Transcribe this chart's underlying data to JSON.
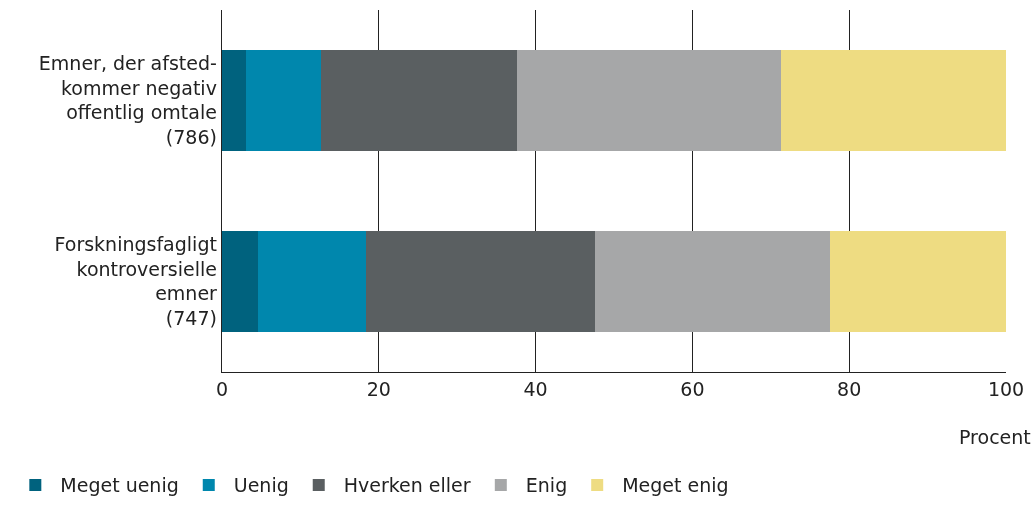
{
  "chart_data": {
    "type": "bar",
    "orientation": "horizontal",
    "stacked": true,
    "categories": [
      "Emner, der afsted-\nkommer negativ\noffentlig omtale\n(786)",
      "Forskningsfagligt\nkontroversielle\nemner\n(747)"
    ],
    "series": [
      {
        "name": "Meget uenig",
        "color": "#00627e",
        "values": [
          3.0,
          4.6
        ]
      },
      {
        "name": "Uenig",
        "color": "#0087ad",
        "values": [
          9.6,
          13.8
        ]
      },
      {
        "name": "Hverken eller",
        "color": "#5a5f61",
        "values": [
          25.0,
          29.2
        ]
      },
      {
        "name": "Enig",
        "color": "#a6a7a8",
        "values": [
          33.7,
          29.9
        ]
      },
      {
        "name": "Meget enig",
        "color": "#eedc82",
        "values": [
          28.7,
          22.5
        ]
      }
    ],
    "xlabel": "Procent",
    "xlim": [
      0,
      100
    ],
    "xticks": [
      0,
      20,
      40,
      60,
      80,
      100
    ],
    "grid": "x",
    "legend": "bottom"
  }
}
